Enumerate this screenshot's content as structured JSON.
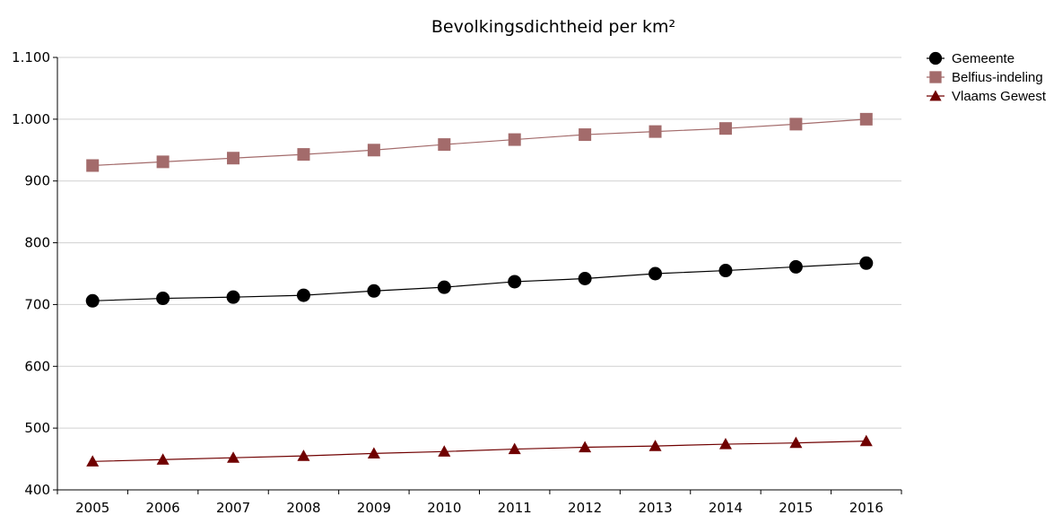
{
  "chart_data": {
    "type": "line",
    "title": "Bevolkingsdichtheid per km²",
    "xlabel": "",
    "ylabel": "",
    "categories": [
      "2005",
      "2006",
      "2007",
      "2008",
      "2009",
      "2010",
      "2011",
      "2012",
      "2013",
      "2014",
      "2015",
      "2016"
    ],
    "ylim": [
      400,
      1100
    ],
    "yticks": [
      400,
      500,
      600,
      700,
      800,
      900,
      1000,
      1100
    ],
    "ytick_labels": [
      "400",
      "500",
      "600",
      "700",
      "800",
      "900",
      "1.000",
      "1.100"
    ],
    "grid": true,
    "legend_position": "right",
    "series": [
      {
        "name": "Gemeente",
        "marker": "circle",
        "color": "#000000",
        "values": [
          706,
          710,
          712,
          715,
          722,
          728,
          737,
          742,
          750,
          755,
          761,
          767
        ]
      },
      {
        "name": "Belfius-indeling",
        "marker": "square",
        "color": "#a36b6b",
        "values": [
          925,
          931,
          937,
          943,
          950,
          959,
          967,
          975,
          980,
          985,
          992,
          1000
        ]
      },
      {
        "name": "Vlaams Gewest",
        "marker": "triangle",
        "color": "#700000",
        "values": [
          446,
          449,
          452,
          455,
          459,
          462,
          466,
          469,
          471,
          474,
          476,
          479
        ]
      }
    ]
  }
}
